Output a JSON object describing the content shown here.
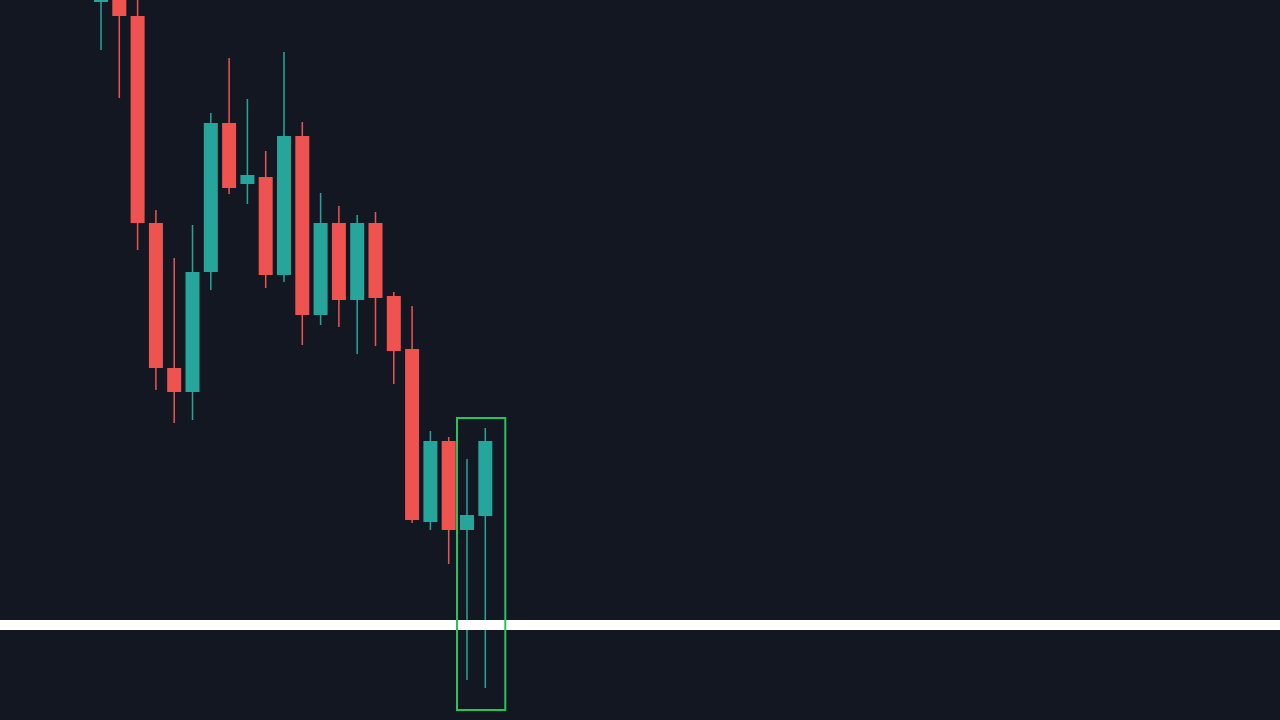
{
  "theme": {
    "background": "#131722",
    "up_color": "#26a69a",
    "down_color": "#ef5350",
    "level_line_color": "#ffffff",
    "highlight_box_color": "#22c55e"
  },
  "chart_data": {
    "type": "candlestick",
    "title": "",
    "xlabel": "",
    "ylabel": "",
    "ylim": [
      0,
      720
    ],
    "grid": false,
    "legend": "none",
    "candles": [
      {
        "i": 0,
        "open": 720,
        "high": 720,
        "low": 670,
        "close": 720
      },
      {
        "i": 1,
        "open": 720,
        "high": 720,
        "low": 622,
        "close": 704
      },
      {
        "i": 2,
        "open": 704,
        "high": 720,
        "low": 470,
        "close": 497
      },
      {
        "i": 3,
        "open": 497,
        "high": 510,
        "low": 330,
        "close": 352
      },
      {
        "i": 4,
        "open": 352,
        "high": 462,
        "low": 297,
        "close": 328
      },
      {
        "i": 5,
        "open": 328,
        "high": 495,
        "low": 300,
        "close": 448
      },
      {
        "i": 6,
        "open": 448,
        "high": 607,
        "low": 430,
        "close": 597
      },
      {
        "i": 7,
        "open": 597,
        "high": 662,
        "low": 526,
        "close": 532
      },
      {
        "i": 8,
        "open": 536,
        "high": 621,
        "low": 516,
        "close": 545
      },
      {
        "i": 9,
        "open": 543,
        "high": 569,
        "low": 432,
        "close": 445
      },
      {
        "i": 10,
        "open": 445,
        "high": 668,
        "low": 438,
        "close": 584
      },
      {
        "i": 11,
        "open": 584,
        "high": 598,
        "low": 375,
        "close": 405
      },
      {
        "i": 12,
        "open": 405,
        "high": 527,
        "low": 395,
        "close": 497
      },
      {
        "i": 13,
        "open": 497,
        "high": 514,
        "low": 393,
        "close": 420
      },
      {
        "i": 14,
        "open": 420,
        "high": 505,
        "low": 366,
        "close": 497
      },
      {
        "i": 15,
        "open": 497,
        "high": 508,
        "low": 374,
        "close": 422
      },
      {
        "i": 16,
        "open": 424,
        "high": 428,
        "low": 336,
        "close": 369
      },
      {
        "i": 17,
        "open": 371,
        "high": 414,
        "low": 197,
        "close": 200
      },
      {
        "i": 18,
        "open": 198,
        "high": 289,
        "low": 190,
        "close": 279
      },
      {
        "i": 19,
        "open": 279,
        "high": 283,
        "low": 156,
        "close": 190
      },
      {
        "i": 20,
        "open": 190,
        "high": 261,
        "low": 40,
        "close": 205
      },
      {
        "i": 21,
        "open": 204,
        "high": 292,
        "low": 32,
        "close": 279
      }
    ],
    "horizontal_levels": [
      95
    ],
    "highlight_range": {
      "from_index": 20,
      "to_index": 21,
      "y_top": 302,
      "y_bottom": 10
    }
  }
}
